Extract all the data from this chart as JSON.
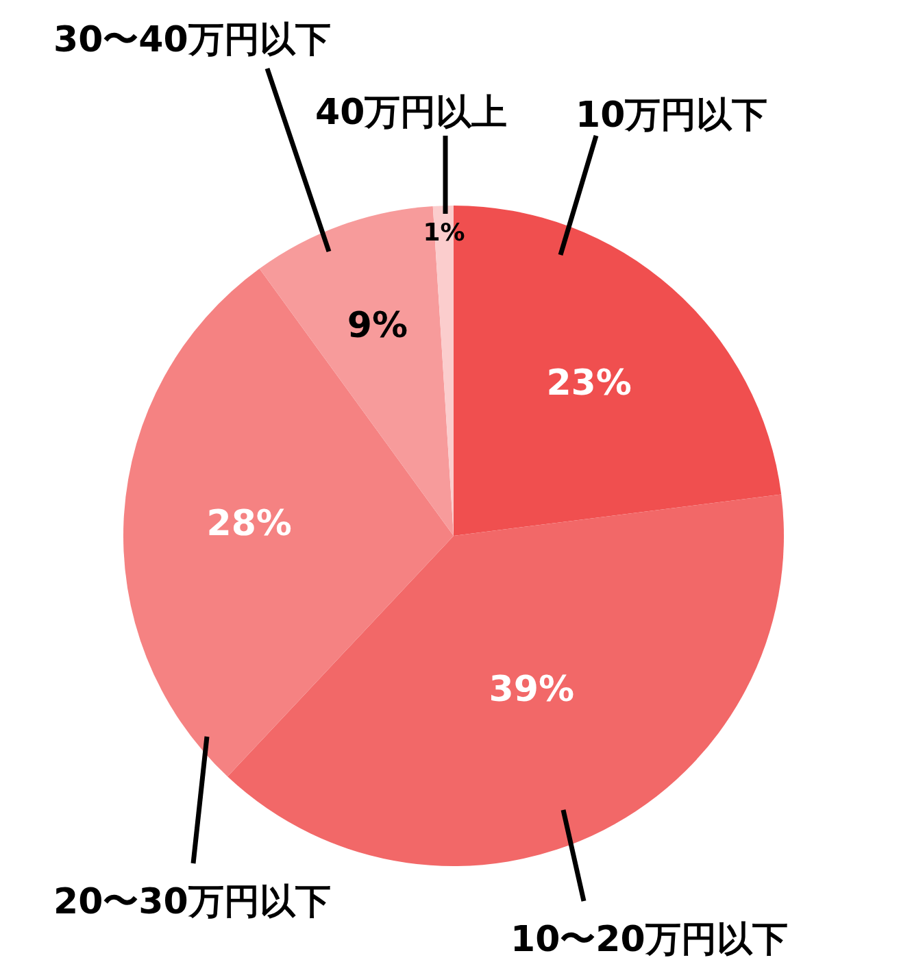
{
  "chart_data": {
    "type": "pie",
    "categories": [
      "10万円以下",
      "10〜20万円以下",
      "20〜30万円以下",
      "30〜40万円以下",
      "40万円以上"
    ],
    "values": [
      23,
      39,
      28,
      9,
      1
    ],
    "colors": [
      "#f04f4f",
      "#f26868",
      "#f58282",
      "#f79b9b",
      "#fbcdcd"
    ],
    "value_labels": [
      "23%",
      "39%",
      "28%",
      "9%",
      "1%"
    ]
  }
}
